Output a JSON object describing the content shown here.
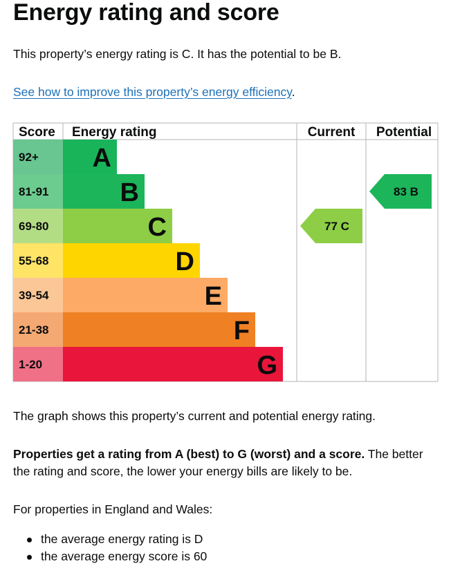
{
  "heading": "Energy rating and score",
  "intro": "This property’s energy rating is C. It has the potential to be B.",
  "improve_link": "See how to improve this property’s energy efficiency",
  "improve_link_suffix": ".",
  "graph": {
    "headers": {
      "score": "Score",
      "rating": "Energy rating",
      "current": "Current",
      "potential": "Potential"
    },
    "bands": [
      {
        "score": "92+",
        "letter": "A",
        "color": "#19b459",
        "score_bg": "#69c691"
      },
      {
        "score": "81-91",
        "letter": "B",
        "color": "#1cb55a",
        "score_bg": "#6ccb8f"
      },
      {
        "score": "69-80",
        "letter": "C",
        "color": "#8dce46",
        "score_bg": "#b3dd85"
      },
      {
        "score": "55-68",
        "letter": "D",
        "color": "#ffd500",
        "score_bg": "#ffe466"
      },
      {
        "score": "39-54",
        "letter": "E",
        "color": "#fcaa65",
        "score_bg": "#fcc796"
      },
      {
        "score": "21-38",
        "letter": "F",
        "color": "#ef8023",
        "score_bg": "#f4a872"
      },
      {
        "score": "1-20",
        "letter": "G",
        "color": "#e9153b",
        "score_bg": "#f07086"
      }
    ],
    "current": {
      "score": 77,
      "letter": "C",
      "color": "#8dce46",
      "label": "77 C"
    },
    "potential": {
      "score": 83,
      "letter": "B",
      "color": "#1cb55a",
      "label": "83 B"
    }
  },
  "graph_caption": "The graph shows this property’s current and potential energy rating.",
  "rating_info_bold": "Properties get a rating from A (best) to G (worst) and a score.",
  "rating_info_rest": " The better the rating and score, the lower your energy bills are likely to be.",
  "region_intro": "For properties in England and Wales:",
  "averages": [
    "the average energy rating is D",
    "the average energy score is 60"
  ]
}
